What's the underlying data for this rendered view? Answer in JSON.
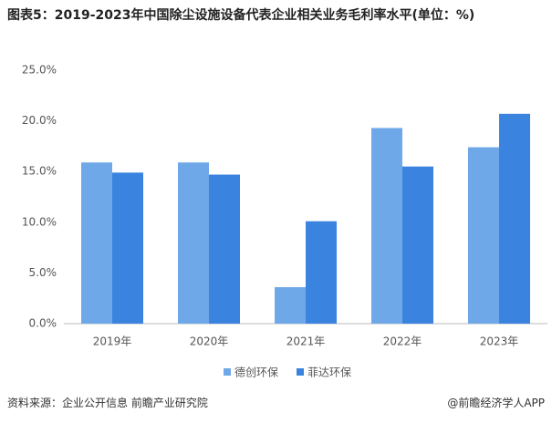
{
  "chart_data": {
    "type": "bar",
    "title": "图表5：2019-2023年中国除尘设施设备代表企业相关业务毛利率水平(单位：%)",
    "categories": [
      "2019年",
      "2020年",
      "2021年",
      "2022年",
      "2023年"
    ],
    "series": [
      {
        "name": "德创环保",
        "color": "#6fa8e8",
        "values": [
          15.9,
          15.9,
          3.6,
          19.3,
          17.4
        ]
      },
      {
        "name": "菲达环保",
        "color": "#3a84e0",
        "values": [
          14.9,
          14.7,
          10.1,
          15.5,
          20.7
        ]
      }
    ],
    "ylim": [
      0,
      25
    ],
    "yticks": [
      {
        "value": 0,
        "label": "0.0%"
      },
      {
        "value": 5,
        "label": "5.0%"
      },
      {
        "value": 10,
        "label": "10.0%"
      },
      {
        "value": 15,
        "label": "15.0%"
      },
      {
        "value": 20,
        "label": "20.0%"
      },
      {
        "value": 25,
        "label": "25.0%"
      }
    ],
    "grid": false,
    "legend": "bottom"
  },
  "source": "资料来源：企业公开信息 前瞻产业研究院",
  "credit": "@前瞻经济学人APP"
}
